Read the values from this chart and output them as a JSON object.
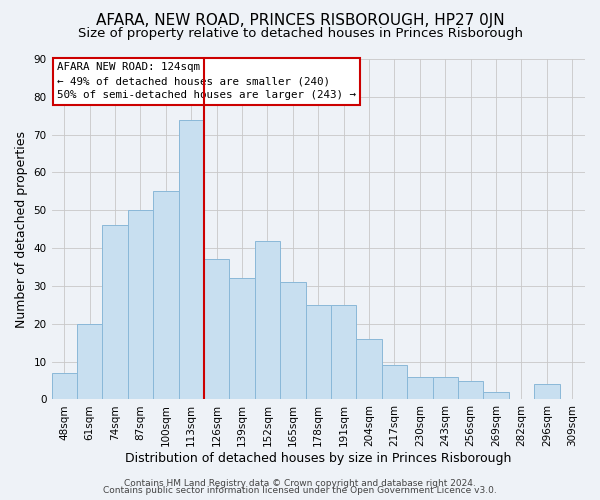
{
  "title": "AFARA, NEW ROAD, PRINCES RISBOROUGH, HP27 0JN",
  "subtitle": "Size of property relative to detached houses in Princes Risborough",
  "xlabel": "Distribution of detached houses by size in Princes Risborough",
  "ylabel": "Number of detached properties",
  "bar_labels": [
    "48sqm",
    "61sqm",
    "74sqm",
    "87sqm",
    "100sqm",
    "113sqm",
    "126sqm",
    "139sqm",
    "152sqm",
    "165sqm",
    "178sqm",
    "191sqm",
    "204sqm",
    "217sqm",
    "230sqm",
    "243sqm",
    "256sqm",
    "269sqm",
    "282sqm",
    "296sqm",
    "309sqm"
  ],
  "bar_values": [
    7,
    20,
    46,
    50,
    55,
    74,
    37,
    32,
    42,
    31,
    25,
    25,
    16,
    9,
    6,
    6,
    5,
    2,
    0,
    4,
    0
  ],
  "bar_color": "#c8dff0",
  "bar_edge_color": "#8ab8d8",
  "vline_index": 5,
  "vline_color": "#cc0000",
  "annotation_title": "AFARA NEW ROAD: 124sqm",
  "annotation_line1": "← 49% of detached houses are smaller (240)",
  "annotation_line2": "50% of semi-detached houses are larger (243) →",
  "annotation_box_color": "#ffffff",
  "annotation_box_edge": "#cc0000",
  "ylim": [
    0,
    90
  ],
  "yticks": [
    0,
    10,
    20,
    30,
    40,
    50,
    60,
    70,
    80,
    90
  ],
  "footer_line1": "Contains HM Land Registry data © Crown copyright and database right 2024.",
  "footer_line2": "Contains public sector information licensed under the Open Government Licence v3.0.",
  "bg_color": "#eef2f7",
  "plot_bg_color": "#eef2f7",
  "title_fontsize": 11,
  "subtitle_fontsize": 9.5,
  "axis_label_fontsize": 9,
  "tick_fontsize": 7.5,
  "footer_fontsize": 6.5
}
